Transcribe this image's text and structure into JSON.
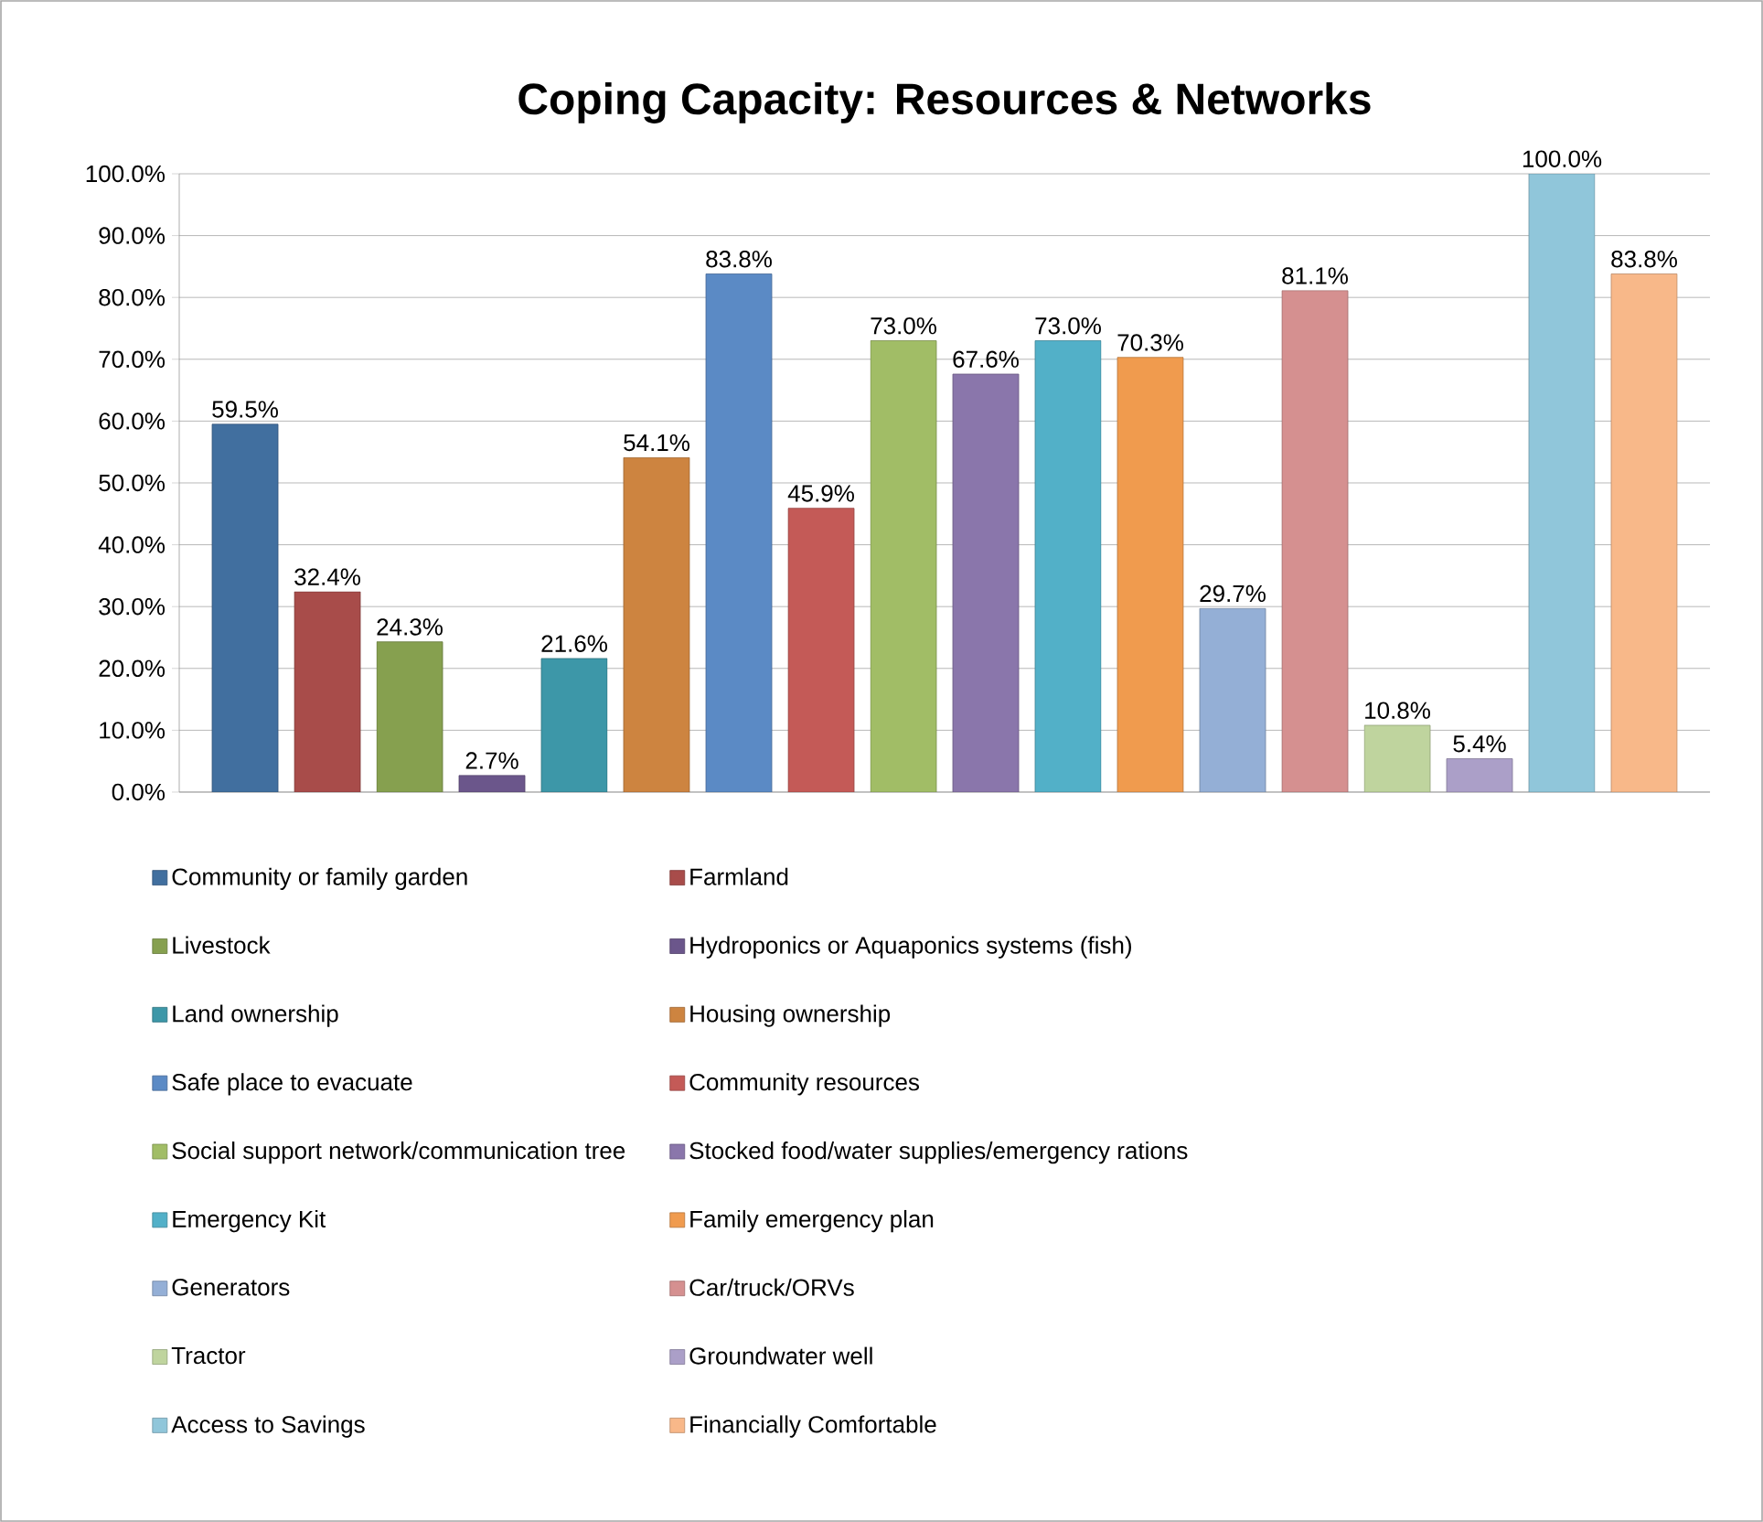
{
  "chart_data": {
    "type": "bar",
    "title": "Coping Capacity: Resources & Networks",
    "categories": [
      null
    ],
    "ylim": [
      0,
      100
    ],
    "yticks": [
      {
        "value": 0,
        "label": "0.0%"
      },
      {
        "value": 10,
        "label": "10.0%"
      },
      {
        "value": 20,
        "label": "20.0%"
      },
      {
        "value": 30,
        "label": "30.0%"
      },
      {
        "value": 40,
        "label": "40.0%"
      },
      {
        "value": 50,
        "label": "50.0%"
      },
      {
        "value": 60,
        "label": "60.0%"
      },
      {
        "value": 70,
        "label": "70.0%"
      },
      {
        "value": 80,
        "label": "80.0%"
      },
      {
        "value": 90,
        "label": "90.0%"
      },
      {
        "value": 100,
        "label": "100.0%"
      }
    ],
    "grid": "y",
    "legend": "bottom",
    "series": [
      {
        "name": "Community or family garden",
        "color": "#416f9f",
        "values": [
          59.5
        ],
        "value_labels": [
          "59.5%"
        ]
      },
      {
        "name": "Farmland",
        "color": "#a84c4a",
        "values": [
          32.4
        ],
        "value_labels": [
          "32.4%"
        ]
      },
      {
        "name": "Livestock",
        "color": "#86a04f",
        "values": [
          24.3
        ],
        "value_labels": [
          "24.3%"
        ]
      },
      {
        "name": "Hydroponics or Aquaponics systems (fish)",
        "color": "#6b568b",
        "values": [
          2.7
        ],
        "value_labels": [
          "2.7%"
        ]
      },
      {
        "name": "Land ownership",
        "color": "#3d97a8",
        "values": [
          21.6
        ],
        "value_labels": [
          "21.6%"
        ]
      },
      {
        "name": "Housing ownership",
        "color": "#cd8440",
        "values": [
          54.1
        ],
        "value_labels": [
          "54.1%"
        ]
      },
      {
        "name": "Safe place to evacuate",
        "color": "#5b8ac5",
        "values": [
          83.8
        ],
        "value_labels": [
          "83.8%"
        ]
      },
      {
        "name": "Community resources",
        "color": "#c45a57",
        "values": [
          45.9
        ],
        "value_labels": [
          "45.9%"
        ]
      },
      {
        "name": "Social support network/communication tree",
        "color": "#a1bd66",
        "values": [
          73.0
        ],
        "value_labels": [
          "73.0%"
        ]
      },
      {
        "name": "Stocked food/water supplies/emergency rations",
        "color": "#8a76ab",
        "values": [
          67.6
        ],
        "value_labels": [
          "67.6%"
        ]
      },
      {
        "name": "Emergency Kit",
        "color": "#52b0c8",
        "values": [
          73.0
        ],
        "value_labels": [
          "73.0%"
        ]
      },
      {
        "name": "Family emergency plan",
        "color": "#f09b4e",
        "values": [
          70.3
        ],
        "value_labels": [
          "70.3%"
        ]
      },
      {
        "name": "Generators",
        "color": "#94afd6",
        "values": [
          29.7
        ],
        "value_labels": [
          "29.7%"
        ]
      },
      {
        "name": "Car/truck/ORVs",
        "color": "#d59090",
        "values": [
          81.1
        ],
        "value_labels": [
          "81.1%"
        ]
      },
      {
        "name": "Tractor",
        "color": "#bfd49e",
        "values": [
          10.8
        ],
        "value_labels": [
          "10.8%"
        ]
      },
      {
        "name": "Groundwater well",
        "color": "#ab9fc8",
        "values": [
          5.4
        ],
        "value_labels": [
          "5.4%"
        ]
      },
      {
        "name": "Access to Savings",
        "color": "#90c6da",
        "values": [
          100.0
        ],
        "value_labels": [
          "100.0%"
        ]
      },
      {
        "name": "Financially Comfortable",
        "color": "#f8b889",
        "values": [
          83.8
        ],
        "value_labels": [
          "83.8%"
        ]
      }
    ]
  }
}
